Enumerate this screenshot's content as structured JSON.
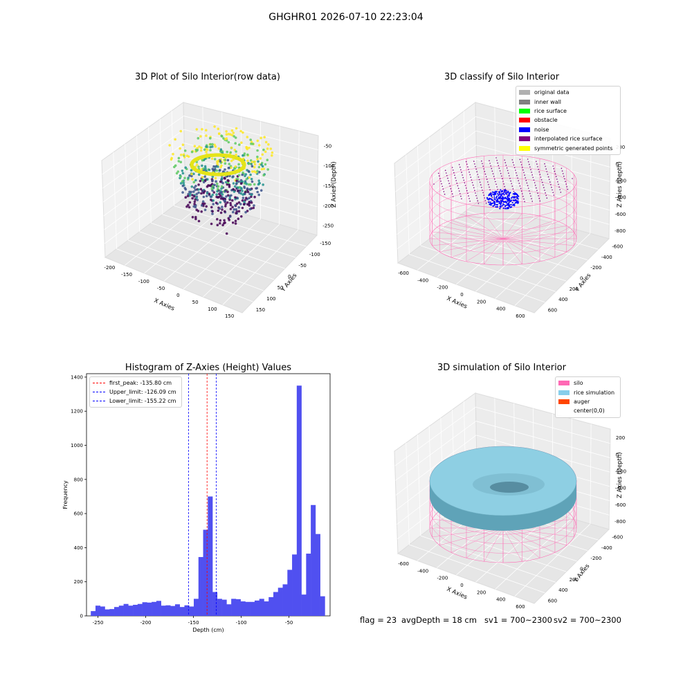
{
  "suptitle": "GHGHR01 2026-07-10 22:23:04",
  "plot1": {
    "title": "3D Plot of Silo Interior(row data)",
    "xlabel": "X Axies",
    "ylabel": "Y Axies",
    "zlabel": "Z Axies (Depth)",
    "xticks": [
      "-200",
      "-150",
      "-100",
      "-50",
      "0",
      "50",
      "100",
      "150"
    ],
    "yticks": [
      "150",
      "100",
      "50",
      "0",
      "-50",
      "-100",
      "-150"
    ],
    "zticks": [
      "-50",
      "-100",
      "-150",
      "-200",
      "-250"
    ]
  },
  "plot2": {
    "title": "3D classify of Silo Interior",
    "xlabel": "X Axies",
    "ylabel": "Y Axies",
    "zlabel": "Z Axies (Depth)",
    "xticks": [
      "-600",
      "-400",
      "-200",
      "0",
      "200",
      "400",
      "600"
    ],
    "yticks": [
      "600",
      "400",
      "200",
      "0",
      "-200",
      "-400",
      "-600"
    ],
    "zticks": [
      "200",
      "0",
      "-200",
      "-400",
      "-600",
      "-800"
    ],
    "legend": [
      {
        "label": "original data",
        "color": "#b0b0b0"
      },
      {
        "label": "inner wall",
        "color": "#808080"
      },
      {
        "label": "rice surface",
        "color": "#00ff00"
      },
      {
        "label": "obstacle",
        "color": "#ff0000"
      },
      {
        "label": "noise",
        "color": "#0000ff"
      },
      {
        "label": "interpolated rice surface",
        "color": "#800080"
      },
      {
        "label": "symmetric generated points",
        "color": "#ffff00"
      }
    ]
  },
  "plot4": {
    "title": "3D simulation of Silo Interior",
    "xlabel": "X Axies",
    "ylabel": "Y Axies",
    "zlabel": "Z Axies (Depth)",
    "xticks": [
      "-600",
      "-400",
      "-200",
      "0",
      "200",
      "400",
      "600"
    ],
    "yticks": [
      "600",
      "400",
      "200",
      "0",
      "-200",
      "-400",
      "-600"
    ],
    "zticks": [
      "200",
      "0",
      "-200",
      "-400",
      "-600",
      "-800"
    ],
    "legend": [
      {
        "label": "silo",
        "color": "#ff69b4"
      },
      {
        "label": "rice simulation",
        "color": "#87ceeb"
      },
      {
        "label": "auger",
        "color": "#ff4500"
      },
      {
        "label": "center(0,0)",
        "color": "#ffffff"
      }
    ]
  },
  "status": {
    "flag": "flag = 23",
    "avg": "avgDepth = 18 cm",
    "sv1": "sv1 = 700~2300",
    "sv2": "sv2 = 700~2300"
  },
  "chart_data": {
    "type": "bar",
    "title": "Histogram of Z-Axies (Height) Values",
    "xlabel": "Depth (cm)",
    "ylabel": "Frequency",
    "xlim": [
      -262,
      -7
    ],
    "ylim": [
      0,
      1420
    ],
    "xticks": [
      -250,
      -200,
      -150,
      -100,
      -50
    ],
    "yticks": [
      0,
      200,
      400,
      600,
      800,
      1000,
      1200,
      1400
    ],
    "bin_start": -257.5,
    "bin_width": 4.9,
    "color": "#5050f0",
    "values": [
      28,
      60,
      55,
      38,
      40,
      52,
      60,
      70,
      60,
      65,
      70,
      80,
      78,
      82,
      88,
      60,
      62,
      58,
      68,
      52,
      62,
      55,
      100,
      345,
      505,
      700,
      140,
      100,
      95,
      68,
      100,
      98,
      85,
      82,
      82,
      90,
      100,
      85,
      110,
      140,
      165,
      185,
      270,
      360,
      1350,
      125,
      365,
      650,
      480,
      115
    ],
    "lines": [
      {
        "label": "first_peak: -135.80 cm",
        "x": -135.8,
        "color": "#ff0000"
      },
      {
        "label": "Upper_limit: -126.09 cm",
        "x": -126.09,
        "color": "#0000ff"
      },
      {
        "label": "Lower_limit: -155.22 cm",
        "x": -155.22,
        "color": "#0000ff"
      }
    ]
  }
}
